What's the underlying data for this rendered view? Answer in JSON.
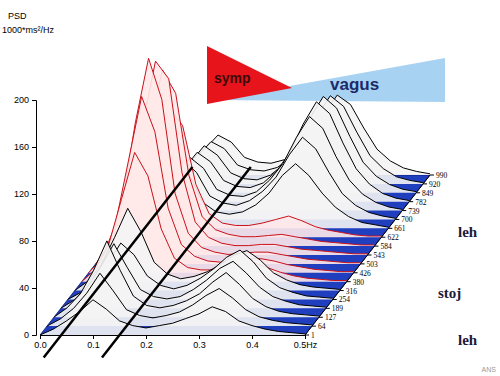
{
  "chart_data": {
    "type": "waterfall",
    "ylabel": "PSD",
    "yunit": "1000*ms²/Hz",
    "x": [
      0,
      0.025,
      0.05,
      0.075,
      0.1,
      0.125,
      0.15,
      0.175,
      0.2,
      0.225,
      0.25,
      0.275,
      0.3,
      0.325,
      0.35,
      0.375,
      0.4,
      0.425,
      0.45,
      0.475,
      0.5
    ],
    "xlim": [
      0,
      0.5
    ],
    "xticks": [
      {
        "value": 0,
        "label": "0.0"
      },
      0.1,
      0.2,
      0.3,
      0.4,
      {
        "value": 0.5,
        "label": "0.5Hz"
      }
    ],
    "ylim": [
      0,
      200
    ],
    "yticks": [
      0,
      40,
      80,
      120,
      160,
      200
    ],
    "depth": [
      1,
      64,
      127,
      189,
      254,
      316,
      380,
      426,
      503,
      543,
      584,
      622,
      661,
      700,
      739,
      782,
      849,
      920,
      990
    ],
    "spectra": [
      [
        0,
        5,
        12,
        20,
        30,
        22,
        12,
        8,
        6,
        8,
        10,
        14,
        18,
        24,
        20,
        12,
        8,
        5,
        3,
        2,
        1
      ],
      [
        0,
        6,
        15,
        28,
        45,
        30,
        14,
        9,
        7,
        9,
        12,
        18,
        26,
        32,
        24,
        14,
        8,
        5,
        3,
        2,
        1
      ],
      [
        0,
        8,
        20,
        40,
        65,
        40,
        18,
        10,
        8,
        10,
        14,
        20,
        30,
        38,
        28,
        16,
        9,
        5,
        3,
        2,
        1
      ],
      [
        0,
        7,
        18,
        35,
        55,
        35,
        16,
        10,
        8,
        10,
        16,
        24,
        34,
        40,
        30,
        18,
        10,
        6,
        3,
        2,
        1
      ],
      [
        0,
        6,
        16,
        30,
        48,
        38,
        20,
        12,
        9,
        12,
        18,
        26,
        36,
        42,
        32,
        18,
        10,
        6,
        3,
        2,
        1
      ],
      [
        0,
        8,
        22,
        45,
        70,
        50,
        24,
        14,
        10,
        12,
        16,
        22,
        30,
        34,
        26,
        15,
        9,
        5,
        3,
        2,
        1
      ],
      [
        0,
        10,
        30,
        70,
        110,
        90,
        45,
        20,
        12,
        10,
        10,
        12,
        14,
        16,
        12,
        8,
        5,
        3,
        2,
        1,
        1
      ],
      [
        0,
        12,
        40,
        95,
        150,
        120,
        55,
        24,
        14,
        10,
        9,
        10,
        12,
        12,
        10,
        7,
        5,
        3,
        2,
        1,
        1
      ],
      [
        0,
        15,
        50,
        120,
        175,
        140,
        60,
        26,
        14,
        10,
        8,
        9,
        10,
        10,
        8,
        6,
        4,
        3,
        2,
        1,
        1
      ],
      [
        0,
        14,
        48,
        110,
        165,
        150,
        70,
        28,
        15,
        10,
        8,
        8,
        9,
        9,
        7,
        5,
        4,
        3,
        2,
        1,
        1
      ],
      [
        0,
        12,
        42,
        100,
        150,
        130,
        60,
        25,
        14,
        10,
        8,
        8,
        9,
        10,
        8,
        6,
        4,
        3,
        2,
        1,
        1
      ],
      [
        0,
        10,
        30,
        70,
        110,
        95,
        45,
        20,
        12,
        10,
        10,
        12,
        15,
        18,
        14,
        9,
        6,
        4,
        2,
        1,
        1
      ],
      [
        0,
        8,
        20,
        40,
        60,
        45,
        22,
        14,
        12,
        14,
        20,
        30,
        45,
        55,
        45,
        30,
        18,
        10,
        5,
        3,
        1
      ],
      [
        0,
        7,
        18,
        35,
        50,
        40,
        20,
        14,
        12,
        16,
        24,
        36,
        55,
        70,
        60,
        40,
        22,
        12,
        6,
        3,
        1
      ],
      [
        0,
        6,
        16,
        30,
        45,
        36,
        18,
        13,
        12,
        16,
        26,
        40,
        62,
        80,
        70,
        46,
        26,
        14,
        7,
        3,
        1
      ],
      [
        0,
        6,
        15,
        28,
        42,
        34,
        18,
        13,
        12,
        16,
        26,
        42,
        66,
        85,
        75,
        50,
        28,
        15,
        7,
        3,
        1
      ],
      [
        0,
        6,
        14,
        26,
        40,
        32,
        17,
        12,
        11,
        15,
        24,
        40,
        64,
        82,
        72,
        48,
        26,
        14,
        7,
        3,
        1
      ],
      [
        0,
        5,
        13,
        24,
        36,
        30,
        16,
        12,
        11,
        14,
        22,
        36,
        58,
        75,
        66,
        44,
        24,
        13,
        6,
        3,
        1
      ],
      [
        0,
        5,
        12,
        22,
        34,
        28,
        15,
        11,
        10,
        13,
        20,
        32,
        52,
        68,
        60,
        40,
        22,
        12,
        6,
        3,
        1
      ]
    ],
    "color": "#000000",
    "band_lines": [
      0.04,
      0.15
    ],
    "wedges": [
      {
        "label": "symp",
        "color": "#e8141c"
      },
      {
        "label": "vagus",
        "color": "#a8d2f2"
      }
    ],
    "depth_zones": [
      "leh",
      "stoj",
      "leh"
    ],
    "watermark": "ANS"
  }
}
